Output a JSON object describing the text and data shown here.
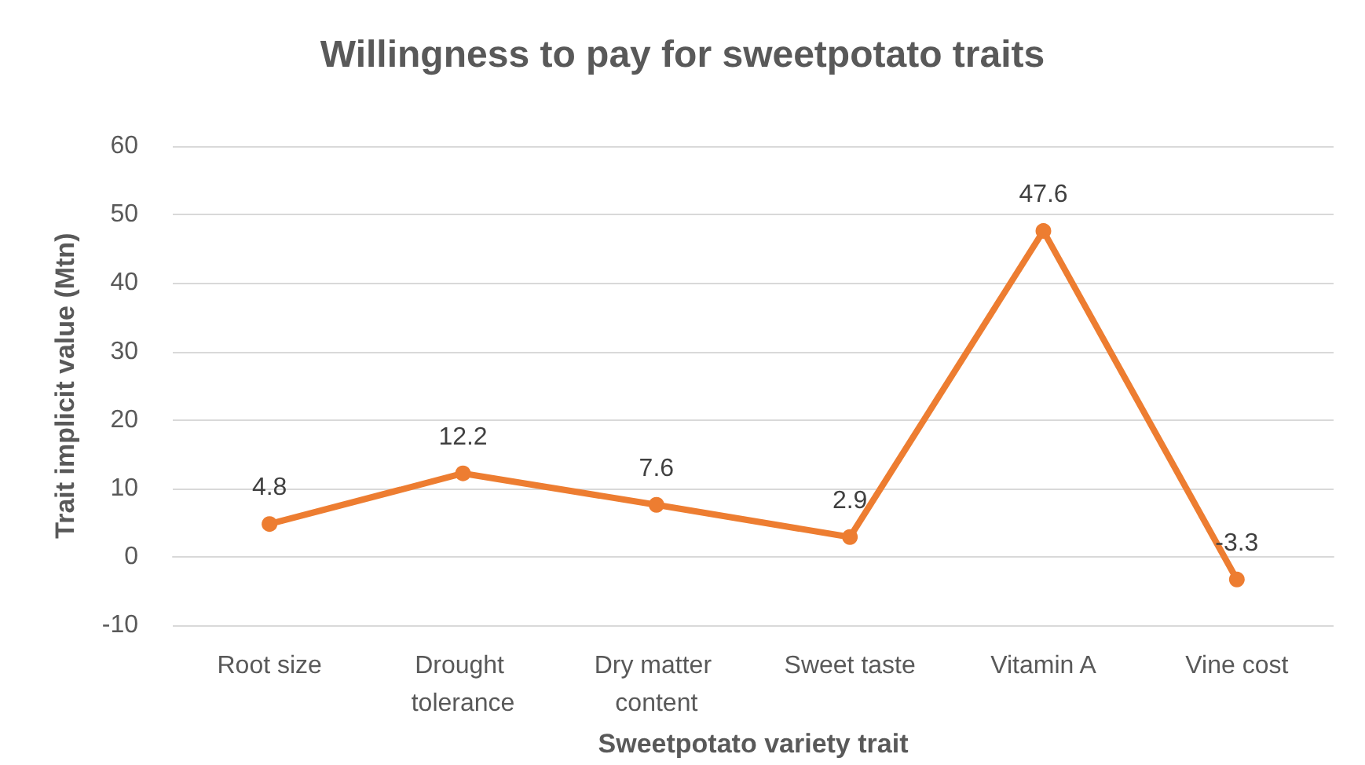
{
  "chart_data": {
    "type": "line",
    "title": "Willingness to pay for sweetpotato traits",
    "xlabel": "Sweetpotato variety trait",
    "ylabel": "Trait implicit value (Mtn)",
    "categories": [
      "Root size",
      "Drought tolerance",
      "Dry matter content",
      "Sweet taste",
      "Vitamin A",
      "Vine cost"
    ],
    "series": [
      {
        "color": "#ed7d31",
        "values": [
          4.8,
          12.2,
          7.6,
          2.9,
          47.6,
          -3.3
        ]
      }
    ],
    "ylim": [
      -10,
      60
    ],
    "yticks": [
      -10,
      0,
      10,
      20,
      30,
      40,
      50,
      60
    ],
    "grid": "y",
    "data_labels": true,
    "marker": "circle",
    "line_style": "solid"
  }
}
